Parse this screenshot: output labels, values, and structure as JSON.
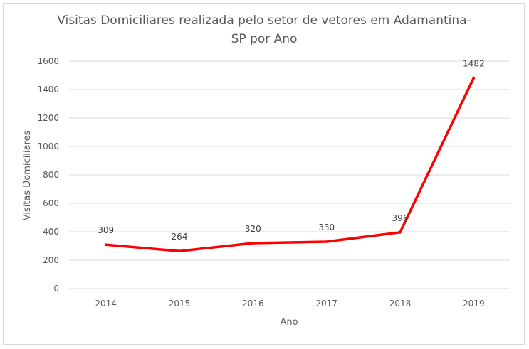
{
  "chart_data": {
    "type": "line",
    "title_lines": [
      "Visitas Domiciliares realizada pelo setor de vetores em Adamantina-",
      "SP por Ano"
    ],
    "xlabel": "Ano",
    "ylabel": "Visitas Domiciliares",
    "categories": [
      "2014",
      "2015",
      "2016",
      "2017",
      "2018",
      "2019"
    ],
    "series": [
      {
        "values": [
          309,
          264,
          320,
          330,
          396,
          1482
        ],
        "color": "#ff0000"
      }
    ],
    "ylim": [
      0,
      1600
    ],
    "yticks": [
      0,
      200,
      400,
      600,
      800,
      1000,
      1200,
      1400,
      1600
    ],
    "grid": true,
    "legend": "none",
    "gridline_color": "#d9d9d9",
    "text_color": "#595959"
  }
}
